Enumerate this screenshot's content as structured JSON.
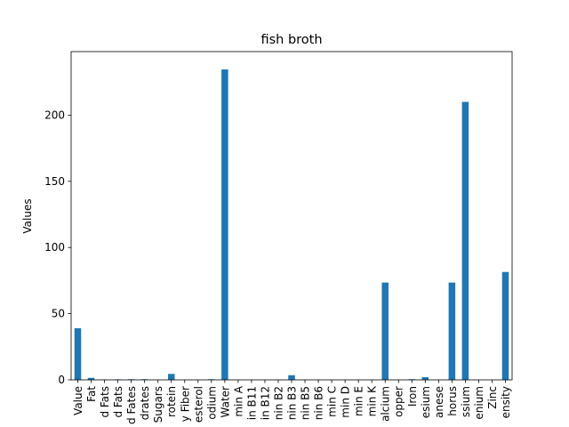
{
  "chart_data": {
    "type": "bar",
    "title": "fish broth",
    "xlabel": "",
    "ylabel": "Values",
    "ylim": [
      0,
      248
    ],
    "yticks": [
      0,
      50,
      100,
      150,
      200
    ],
    "bar_color": "#1f77b4",
    "grid": false,
    "legend": "none",
    "categories": [
      "Value",
      "Fat",
      "d Fats",
      "d Fats",
      "d Fates",
      "drates",
      "Sugars",
      "rotein",
      "y Fiber",
      "esterol",
      "odium",
      "Water",
      "min A",
      "in B11",
      "in B12",
      "nin B2",
      "nin B3",
      "nin B5",
      "nin B6",
      "min C",
      "min D",
      "min E",
      "min K",
      "alcium",
      "opper",
      "Iron",
      "esium",
      "anese",
      "horus",
      "ssium",
      "enium",
      "Zinc",
      "ensity"
    ],
    "values": [
      39,
      1.5,
      0.3,
      0.4,
      0.5,
      0.5,
      0,
      4.5,
      0,
      0,
      0.5,
      234.5,
      0,
      0,
      0,
      0.2,
      3.5,
      0.2,
      0,
      0,
      0,
      0,
      0,
      73.5,
      0,
      0.5,
      2,
      0,
      73.5,
      210,
      0,
      0,
      81.5
    ]
  }
}
